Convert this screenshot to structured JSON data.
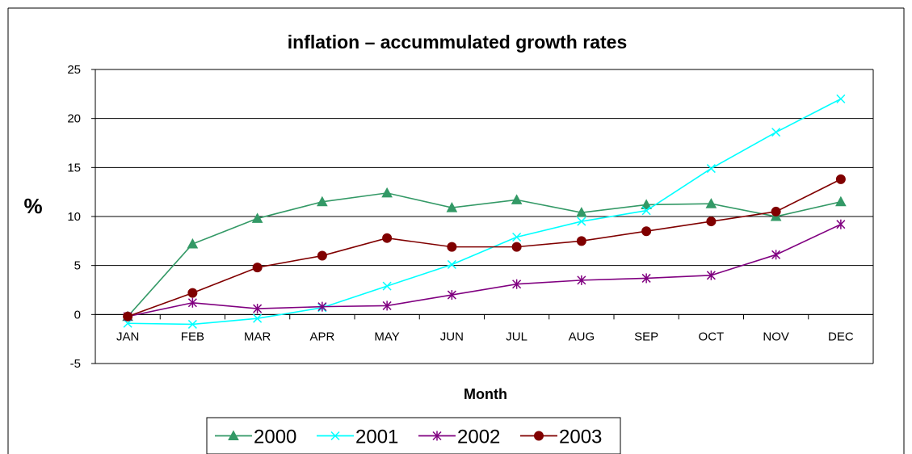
{
  "chart_data": {
    "type": "line",
    "title": "inflation – accummulated growth rates",
    "xlabel": "Month",
    "ylabel": "%",
    "categories": [
      "JAN",
      "FEB",
      "MAR",
      "APR",
      "MAY",
      "JUN",
      "JUL",
      "AUG",
      "SEP",
      "OCT",
      "NOV",
      "DEC"
    ],
    "ylim": [
      -5,
      25
    ],
    "yticks": [
      -5,
      0,
      5,
      10,
      15,
      20,
      25
    ],
    "grid": "horizontal",
    "legend_position": "bottom",
    "series": [
      {
        "name": "2000",
        "color": "#339966",
        "marker": "triangle",
        "values": [
          -0.2,
          7.2,
          9.8,
          11.5,
          12.4,
          10.9,
          11.7,
          10.4,
          11.2,
          11.3,
          10.0,
          11.5
        ]
      },
      {
        "name": "2001",
        "color": "#00FFFF",
        "marker": "x",
        "values": [
          -0.9,
          -1.0,
          -0.4,
          0.7,
          2.9,
          5.1,
          7.9,
          9.5,
          10.6,
          14.9,
          18.6,
          22.0
        ]
      },
      {
        "name": "2002",
        "color": "#800080",
        "marker": "star",
        "values": [
          -0.2,
          1.2,
          0.6,
          0.8,
          0.9,
          2.0,
          3.1,
          3.5,
          3.7,
          4.0,
          6.1,
          9.2
        ]
      },
      {
        "name": "2003",
        "color": "#800000",
        "marker": "circle",
        "values": [
          -0.2,
          2.2,
          4.8,
          6.0,
          7.8,
          6.9,
          6.9,
          7.5,
          8.5,
          9.5,
          10.5,
          13.8
        ]
      }
    ]
  }
}
